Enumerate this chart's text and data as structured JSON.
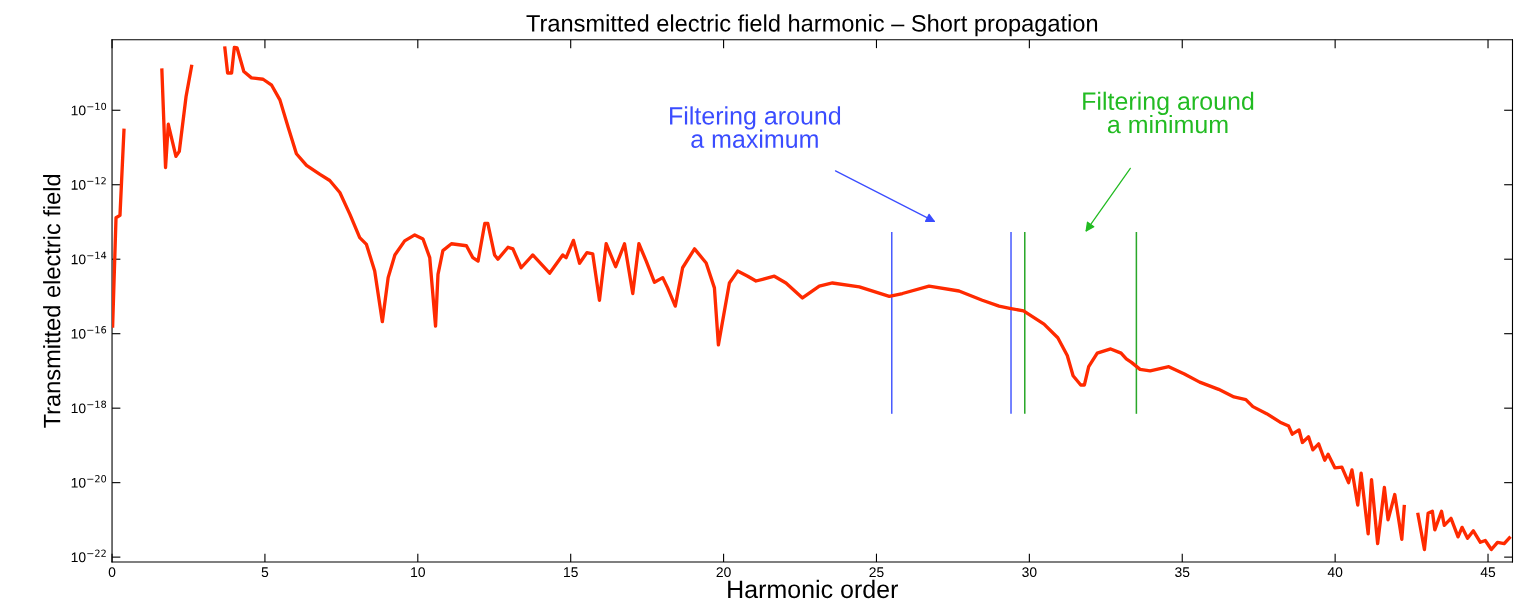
{
  "chart_data": {
    "type": "line",
    "title": "Transmitted electric field harmonic – Short propagation",
    "xlabel": "Harmonic order",
    "ylabel": "Transmitted electric field",
    "log": "y",
    "grid": false,
    "marker": "none",
    "line_style": "solid",
    "xlim": [
      0,
      45.8
    ],
    "xticks": [
      0,
      5,
      10,
      15,
      20,
      25,
      30,
      35,
      40,
      45
    ],
    "ylim": [
      7.4e-23,
      7.8e-09
    ],
    "yticks": [
      {
        "value": 1e-10,
        "label": "10$^{−10}$"
      },
      {
        "value": 1e-12,
        "label": "10$^{−12}$"
      },
      {
        "value": 1e-14,
        "label": "10$^{−14}$"
      },
      {
        "value": 1e-16,
        "label": "10$^{−16}$"
      },
      {
        "value": 1e-18,
        "label": "10$^{−18}$"
      },
      {
        "value": 1e-20,
        "label": "10$^{−20}$"
      },
      {
        "value": 1e-22,
        "label": "10$^{−22}$"
      }
    ],
    "series": [
      {
        "color": "#ff2a00",
        "x": [
          0.02,
          0.13,
          0.26,
          0.39,
          0.52,
          1.0,
          1.54,
          1.63,
          1.75,
          1.84,
          2.09,
          2.2,
          2.42,
          2.6,
          2.82,
          3.3,
          3.55,
          3.69,
          3.78,
          3.91,
          4.0,
          4.09,
          4.31,
          4.56,
          4.94,
          5.22,
          5.49,
          5.76,
          6.03,
          6.36,
          6.8,
          7.12,
          7.45,
          7.78,
          8.1,
          8.32,
          8.59,
          8.84,
          9.03,
          9.25,
          9.57,
          9.9,
          10.17,
          10.39,
          10.58,
          10.66,
          10.82,
          11.1,
          11.59,
          11.8,
          11.97,
          12.19,
          12.29,
          12.51,
          12.62,
          12.95,
          13.11,
          13.38,
          13.76,
          14.31,
          14.74,
          14.85,
          15.09,
          15.29,
          15.53,
          15.72,
          15.94,
          16.16,
          16.47,
          16.76,
          17.03,
          17.23,
          17.47,
          17.74,
          18.01,
          18.17,
          18.42,
          18.66,
          19.05,
          19.43,
          19.7,
          19.83,
          20.19,
          20.46,
          20.79,
          21.06,
          21.66,
          22.04,
          22.58,
          23.13,
          23.56,
          24.44,
          25.42,
          25.85,
          26.72,
          27.7,
          28.46,
          29.01,
          29.36,
          29.81,
          30.48,
          30.93,
          31.24,
          31.43,
          31.68,
          31.8,
          31.94,
          32.22,
          32.66,
          33.0,
          33.17,
          33.34,
          33.62,
          33.95,
          34.56,
          35.07,
          35.57,
          36.19,
          36.69,
          37.08,
          37.31,
          37.76,
          38.2,
          38.48,
          38.6,
          38.82,
          38.93,
          39.13,
          39.27,
          39.46,
          39.66,
          39.77,
          39.99,
          40.22,
          40.44,
          40.55,
          40.74,
          40.85,
          41.08,
          41.19,
          41.39,
          41.61,
          41.73,
          41.95,
          42.18,
          42.26,
          42.51,
          42.71,
          42.92,
          43.04,
          43.18,
          43.26,
          43.48,
          43.57,
          43.79,
          44.02,
          44.15,
          44.33,
          44.52,
          44.75,
          44.91,
          45.11,
          45.31,
          45.53,
          45.7
        ],
        "values": [
          1.6e-16,
          1.3e-13,
          1.5e-13,
          2.9e-11,
          null,
          null,
          null,
          1.2e-09,
          2.9e-12,
          4.2e-11,
          5.8e-12,
          7.9e-12,
          2.3e-10,
          1.5e-09,
          null,
          null,
          null,
          4.7e-09,
          1e-09,
          1e-09,
          4.9e-09,
          4.7e-09,
          1.1e-09,
          7.4e-10,
          6.8e-10,
          4.7e-10,
          1.9e-10,
          3.5e-11,
          6.8e-12,
          3.3e-12,
          1.9e-12,
          1.3e-12,
          6.2e-13,
          1.6e-13,
          3.8e-14,
          2.5e-14,
          4.8e-15,
          2.1e-16,
          3.2e-15,
          1.3e-14,
          3.1e-14,
          4.5e-14,
          3.5e-14,
          1.1e-14,
          1.6e-16,
          3.9e-15,
          1.7e-14,
          2.6e-14,
          2.3e-14,
          1.1e-14,
          8.9e-15,
          9.1e-14,
          9.1e-14,
          1.3e-14,
          1e-14,
          2.1e-14,
          1.9e-14,
          5.9e-15,
          1.3e-14,
          4.2e-15,
          1.3e-14,
          1.1e-14,
          3.2e-14,
          7.8e-15,
          1.5e-14,
          1.4e-14,
          7.9e-16,
          2.6e-14,
          6.3e-15,
          2.6e-14,
          1.2e-15,
          2.6e-14,
          8.9e-15,
          2.4e-15,
          3.2e-15,
          1.7e-15,
          5.5e-16,
          5.9e-15,
          1.9e-14,
          7.9e-15,
          1.7e-15,
          5e-17,
          2.3e-15,
          4.8e-15,
          3.5e-15,
          2.6e-15,
          3.5e-15,
          2.3e-15,
          9.1e-16,
          1.9e-15,
          2.3e-15,
          1.8e-15,
          1e-15,
          1.2e-15,
          1.9e-15,
          1.4e-15,
          7.9e-16,
          5.5e-16,
          4.8e-16,
          4.1e-16,
          1.8e-16,
          7.8e-17,
          2.6e-17,
          7.4e-18,
          4.2e-18,
          4.2e-18,
          1.3e-17,
          3e-17,
          3.9e-17,
          3e-17,
          2.1e-17,
          1.7e-17,
          1.1e-17,
          1e-17,
          1.3e-17,
          8.3e-18,
          5e-18,
          3.2e-18,
          2e-18,
          1.7e-18,
          1.1e-18,
          7.1e-19,
          4.2e-19,
          3.3e-19,
          2e-19,
          2.6e-19,
          1.2e-19,
          1.7e-19,
          7.6e-20,
          1.1e-19,
          4e-20,
          5.8e-20,
          2.5e-20,
          2.6e-20,
          1e-20,
          2.2e-20,
          2.5e-21,
          1.8e-20,
          4.2e-22,
          1.2e-20,
          2.3e-22,
          7.4e-21,
          1e-21,
          4.8e-21,
          3e-22,
          2.3e-21,
          null,
          1.4e-21,
          1.6e-22,
          1.5e-21,
          1.7e-21,
          5.4e-22,
          1.7e-21,
          7.1e-22,
          1.1e-21,
          3.5e-22,
          6.3e-22,
          3.2e-22,
          5.1e-22,
          2.5e-22,
          2.8e-22,
          1.6e-22,
          2.5e-22,
          2.3e-22,
          3.3e-22
        ]
      },
      {
        "color": "#4a5cff",
        "x": [
          25.5,
          25.5
        ],
        "values": [
          5.1e-14,
          7.4e-19
        ]
      },
      {
        "color": "#4a5cff",
        "x": [
          29.4,
          29.4
        ],
        "values": [
          5.1e-14,
          7.4e-19
        ]
      },
      {
        "color": "#2aa82a",
        "x": [
          29.85,
          29.85
        ],
        "values": [
          5.1e-14,
          7.4e-19
        ]
      },
      {
        "color": "#2aa82a",
        "x": [
          33.5,
          33.5
        ],
        "values": [
          5.1e-14,
          7.4e-19
        ]
      }
    ],
    "annotations": [
      "Filtering around\na maximum",
      "Filtering around\na minimum"
    ]
  }
}
